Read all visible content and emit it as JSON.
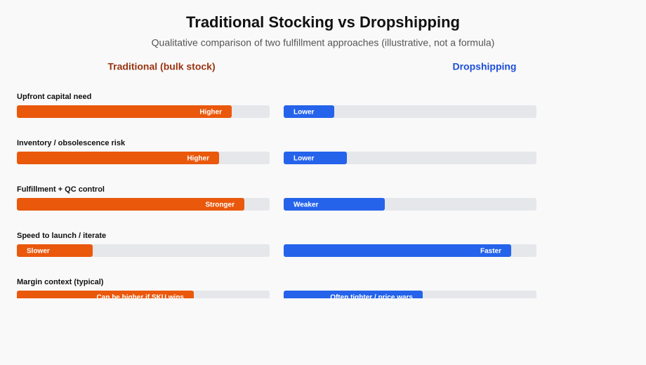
{
  "chart_data": {
    "type": "bar",
    "title": "Traditional Stocking vs Dropshipping",
    "subtitle": "Qualitative comparison of two fulfillment approaches (illustrative, not a formula)",
    "categories": [
      "Upfront capital need",
      "Inventory / obsolescence risk",
      "Fulfillment + QC control",
      "Speed to launch / iterate",
      "Margin context (typical)"
    ],
    "xlim": [
      0,
      100
    ],
    "series": [
      {
        "name": "Traditional (bulk stock)",
        "color": "#ea580c",
        "label_color": "#9a3412",
        "values": [
          85,
          80,
          90,
          30,
          70
        ],
        "value_labels": [
          "Higher",
          "Higher",
          "Stronger",
          "Slower",
          "Can be higher if SKU wins"
        ]
      },
      {
        "name": "Dropshipping",
        "color": "#2563eb",
        "label_color": "#1d4ed8",
        "values": [
          20,
          25,
          40,
          90,
          55
        ],
        "value_labels": [
          "Lower",
          "Lower",
          "Weaker",
          "Faster",
          "Often tighter / price wars"
        ]
      }
    ]
  }
}
